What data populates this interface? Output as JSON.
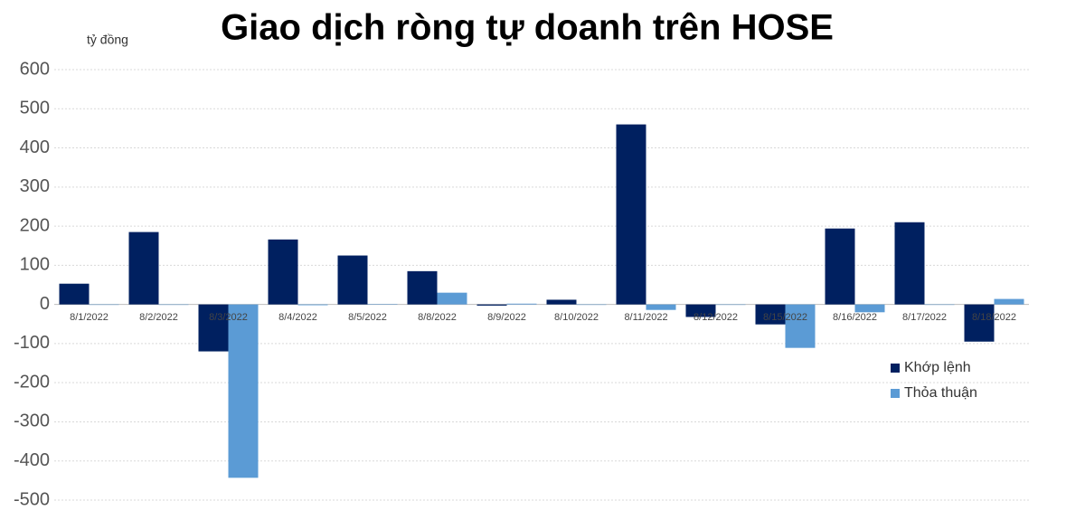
{
  "chart_data": {
    "type": "bar",
    "title": "Giao dịch ròng tự doanh trên HOSE",
    "y_axis_label": "tỷ đồng",
    "categories": [
      "8/1/2022",
      "8/2/2022",
      "8/3/2022",
      "8/4/2022",
      "8/5/2022",
      "8/8/2022",
      "8/9/2022",
      "8/10/2022",
      "8/11/2022",
      "8/12/2022",
      "8/15/2022",
      "8/16/2022",
      "8/17/2022",
      "8/18/2022"
    ],
    "series": [
      {
        "name": "Khớp lệnh",
        "color": "#002060",
        "values": [
          53,
          185,
          -120,
          166,
          125,
          85,
          -3,
          12,
          460,
          -32,
          -51,
          194,
          210,
          -95
        ]
      },
      {
        "name": "Thỏa thuận",
        "color": "#5b9bd5",
        "values": [
          0,
          0,
          -443,
          -2,
          1,
          30,
          2,
          0,
          -14,
          0,
          -111,
          -20,
          0,
          14
        ]
      }
    ],
    "ylim": [
      -500,
      600
    ],
    "yticks": [
      -500,
      -400,
      -300,
      -200,
      -100,
      0,
      100,
      200,
      300,
      400,
      500,
      600
    ],
    "grid": true,
    "legend": "right"
  }
}
